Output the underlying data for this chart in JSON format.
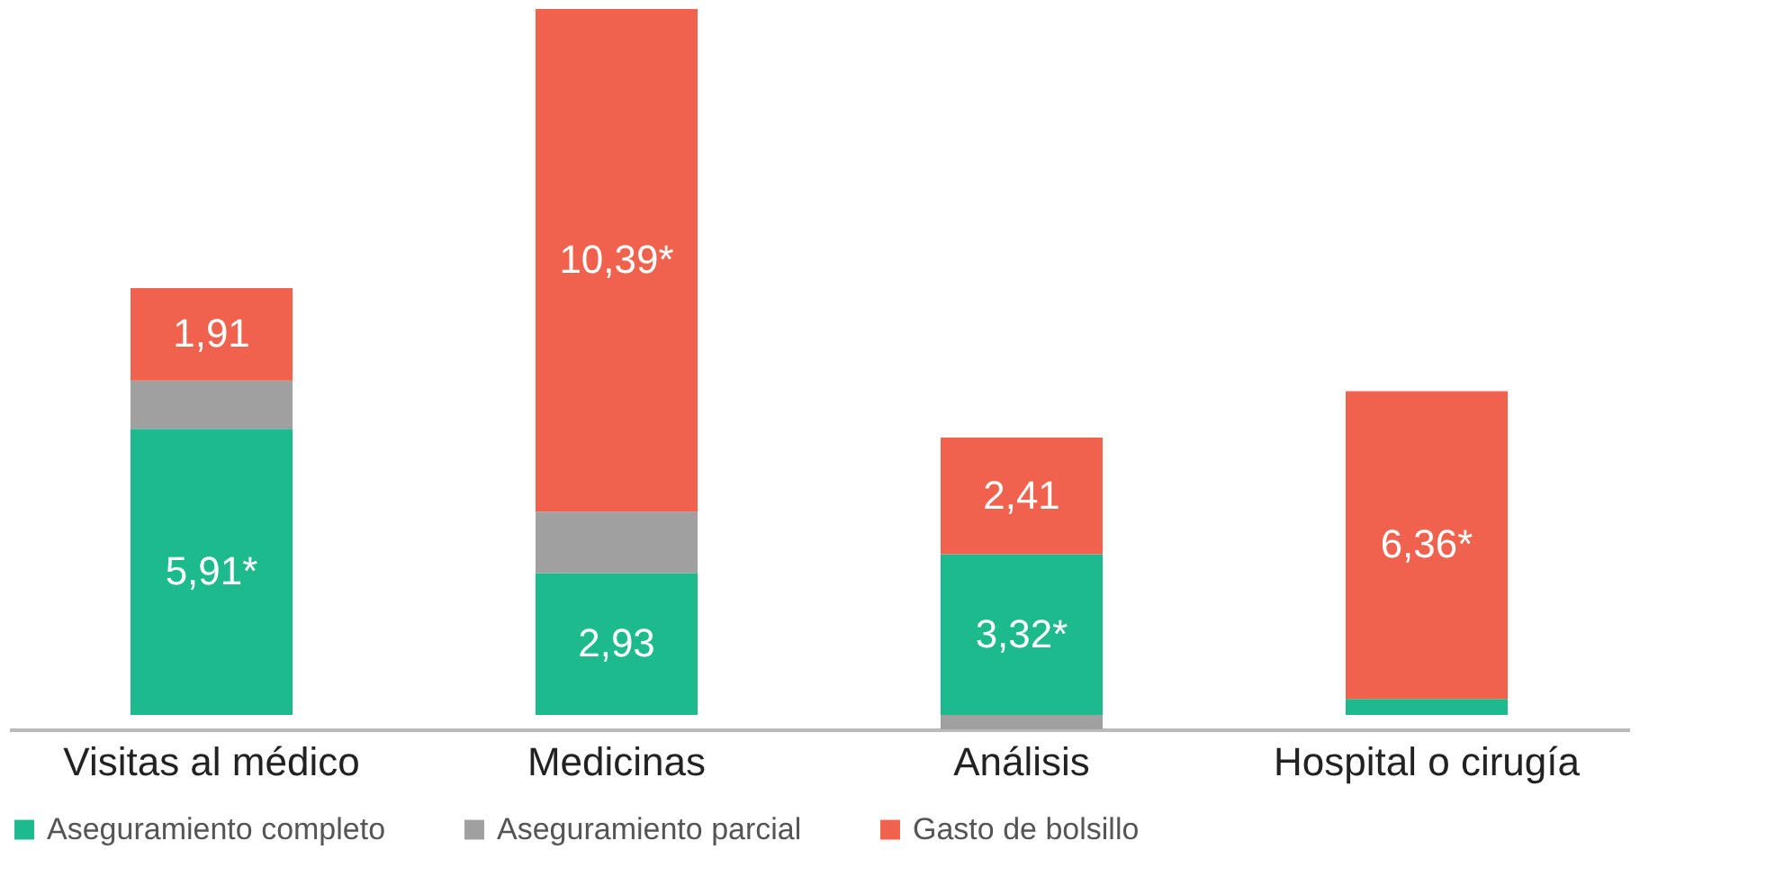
{
  "chart_data": {
    "type": "bar",
    "stacked": true,
    "categories": [
      "Visitas al médico",
      "Medicinas",
      "Análisis",
      "Hospital o cirugía"
    ],
    "series": [
      {
        "name": "Aseguramiento completo",
        "color": "#1dba8e",
        "values": [
          5.91,
          2.93,
          3.32,
          0.33
        ],
        "value_labels": [
          "5,91*",
          "2,93",
          "3,32*",
          null
        ]
      },
      {
        "name": "Aseguramiento parcial",
        "color": "#a0a0a0",
        "values": [
          1.0,
          1.27,
          -0.3,
          null
        ],
        "value_labels": [
          null,
          null,
          null,
          null
        ]
      },
      {
        "name": "Gasto de bolsillo",
        "color": "#f0624d",
        "values": [
          1.91,
          10.39,
          2.41,
          6.36
        ],
        "value_labels": [
          "1,91",
          "10,39*",
          "2,41",
          "6,36*"
        ]
      }
    ],
    "legend": "bottom",
    "grid": false
  }
}
